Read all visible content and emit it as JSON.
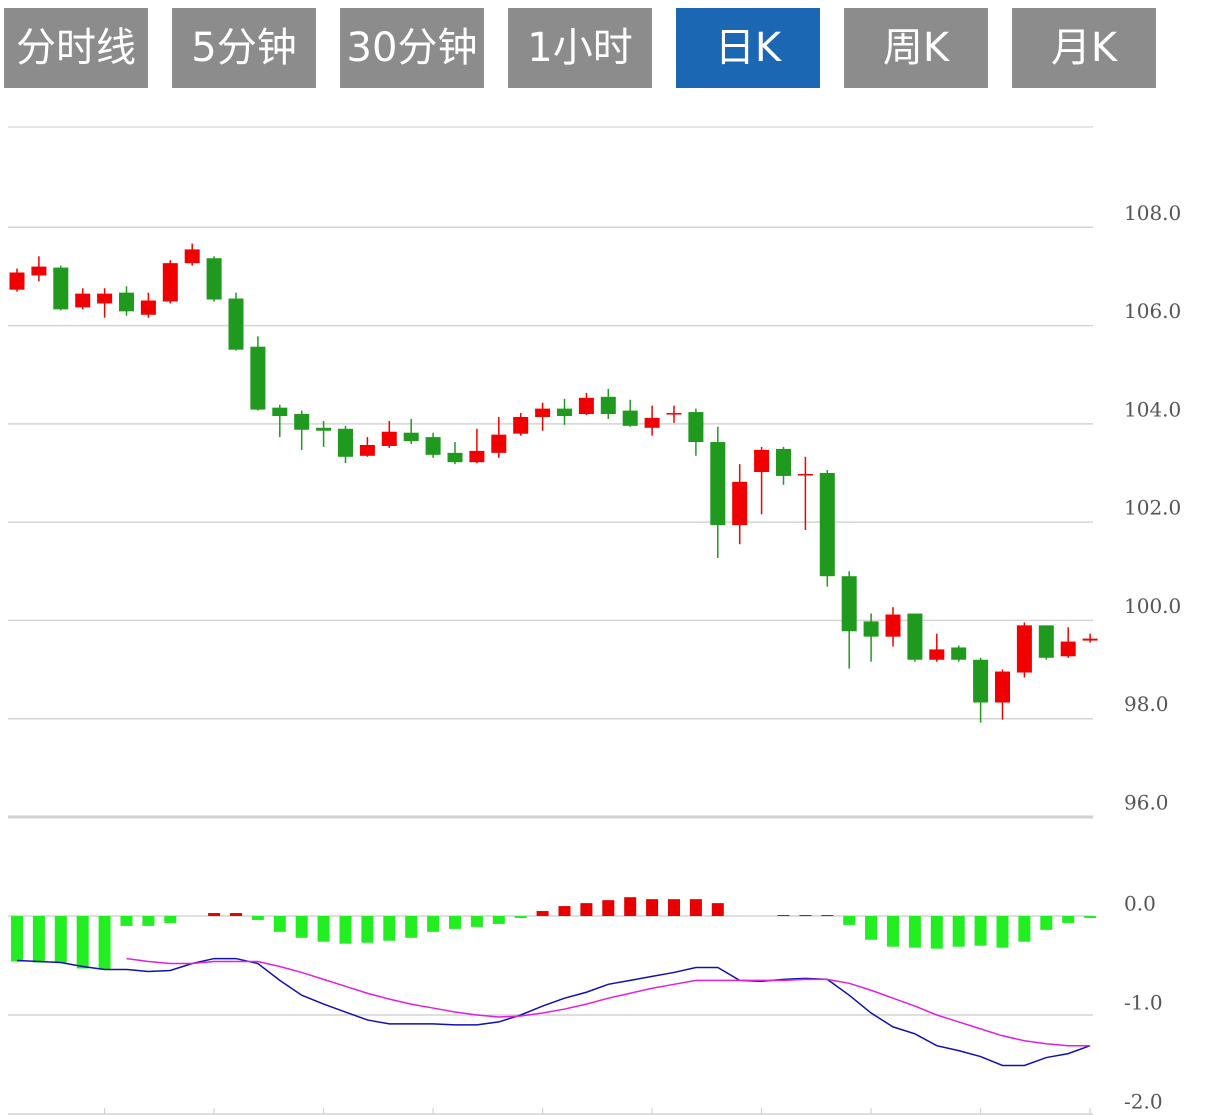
{
  "tabs": [
    "分时线",
    "5分钟",
    "30分钟",
    "1小时",
    "日K",
    "周K",
    "月K"
  ],
  "active_tab": 4,
  "chart_data": [
    {
      "type": "candlestick",
      "up_color": "#f00000",
      "down_color": "#1f9a1f",
      "ylim": [
        96,
        110
      ],
      "yticks": [
        {
          "value": 96,
          "label": "96.0"
        },
        {
          "value": 98,
          "label": "98.0"
        },
        {
          "value": 100,
          "label": "100.0"
        },
        {
          "value": 102,
          "label": "102.0"
        },
        {
          "value": 104,
          "label": "104.0"
        },
        {
          "value": 106,
          "label": "106.0"
        },
        {
          "value": 108,
          "label": "108.0"
        }
      ],
      "grid": true,
      "open": [
        106.73,
        107.02,
        107.18,
        106.37,
        106.45,
        106.67,
        106.22,
        106.49,
        107.27,
        107.37,
        106.55,
        105.57,
        104.33,
        104.2,
        103.92,
        103.9,
        103.35,
        103.55,
        103.82,
        103.73,
        103.41,
        103.22,
        103.41,
        103.8,
        104.14,
        104.31,
        104.2,
        104.55,
        104.27,
        103.92,
        104.2,
        104.24,
        103.63,
        101.94,
        103.02,
        103.49,
        102.96,
        103,
        100.9,
        99.98,
        99.67,
        100.14,
        99.2,
        99.45,
        99.2,
        98.33,
        98.94,
        99.9,
        99.27,
        99.59
      ],
      "high": [
        107.16,
        107.41,
        107.22,
        106.76,
        106.76,
        106.8,
        106.67,
        107.33,
        107.67,
        107.41,
        106.67,
        105.78,
        104.39,
        104.27,
        104.06,
        103.96,
        103.73,
        104.06,
        104.1,
        103.82,
        103.63,
        103.9,
        104.14,
        104.22,
        104.43,
        104.51,
        104.63,
        104.71,
        104.49,
        104.37,
        104.37,
        104.31,
        103.94,
        103.18,
        103.53,
        103.53,
        103.33,
        103.06,
        101,
        100.14,
        100.27,
        100.14,
        99.73,
        99.49,
        99.24,
        99,
        99.96,
        99.9,
        99.86,
        99.73
      ],
      "low": [
        106.69,
        106.9,
        106.31,
        106.33,
        106.16,
        106.2,
        106.16,
        106.45,
        107.22,
        106.49,
        105.49,
        104.27,
        103.73,
        103.47,
        103.53,
        103.2,
        103.33,
        103.51,
        103.59,
        103.31,
        103.18,
        103.2,
        103.31,
        103.76,
        103.86,
        103.98,
        104.18,
        104.1,
        103.94,
        103.76,
        104.02,
        103.35,
        101.27,
        101.55,
        102.16,
        102.76,
        101.84,
        100.69,
        99.02,
        99.16,
        99.47,
        99.16,
        99.16,
        99.16,
        97.92,
        97.98,
        98.84,
        99.2,
        99.24,
        99.55
      ],
      "close": [
        107.08,
        107.2,
        106.33,
        106.65,
        106.65,
        106.29,
        106.51,
        107.27,
        107.55,
        106.53,
        105.51,
        104.29,
        104.16,
        103.88,
        103.86,
        103.33,
        103.57,
        103.84,
        103.65,
        103.37,
        103.22,
        103.45,
        103.78,
        104.14,
        104.31,
        104.16,
        104.53,
        104.2,
        103.96,
        104.12,
        104.22,
        103.63,
        101.94,
        102.82,
        103.47,
        102.94,
        102.98,
        100.9,
        99.78,
        99.67,
        100.12,
        99.2,
        99.41,
        99.2,
        98.33,
        98.96,
        99.9,
        99.24,
        99.57,
        99.63
      ]
    },
    {
      "type": "macd",
      "ylim": [
        -2,
        1
      ],
      "yticks": [
        {
          "value": -2,
          "label": "-2.0"
        },
        {
          "value": -1,
          "label": "-1.0"
        },
        {
          "value": 0,
          "label": "0.0"
        }
      ],
      "grid": true,
      "histogram": {
        "up_color": "#e60000",
        "down_color": "#22ee22",
        "values": [
          -0.46,
          -0.47,
          -0.47,
          -0.53,
          -0.54,
          -0.1,
          -0.1,
          -0.07,
          0,
          0.03,
          0.03,
          -0.04,
          -0.16,
          -0.22,
          -0.26,
          -0.28,
          -0.27,
          -0.25,
          -0.22,
          -0.16,
          -0.13,
          -0.11,
          -0.08,
          -0.02,
          0.05,
          0.1,
          0.13,
          0.16,
          0.19,
          0.17,
          0.17,
          0.17,
          0.13,
          0,
          0,
          0.01,
          0.01,
          0.01,
          -0.09,
          -0.24,
          -0.31,
          -0.32,
          -0.33,
          -0.31,
          -0.3,
          -0.32,
          -0.26,
          -0.14,
          -0.07,
          -0.02
        ]
      },
      "lines": [
        {
          "color": "#1010b0",
          "values": [
            -0.45,
            -0.46,
            -0.47,
            -0.51,
            -0.54,
            -0.54,
            -0.56,
            -0.55,
            -0.48,
            -0.43,
            -0.43,
            -0.48,
            -0.65,
            -0.8,
            -0.89,
            -0.97,
            -1.05,
            -1.09,
            -1.09,
            -1.09,
            -1.1,
            -1.1,
            -1.07,
            -1.0,
            -0.91,
            -0.83,
            -0.77,
            -0.69,
            -0.65,
            -0.61,
            -0.57,
            -0.52,
            -0.52,
            -0.65,
            -0.66,
            -0.64,
            -0.63,
            -0.64,
            -0.8,
            -0.98,
            -1.12,
            -1.19,
            -1.31,
            -1.36,
            -1.42,
            -1.51,
            -1.51,
            -1.43,
            -1.39,
            -1.31
          ]
        },
        {
          "color": "#e020e0",
          "values": [
            null,
            null,
            null,
            null,
            null,
            -0.43,
            -0.46,
            -0.48,
            -0.48,
            -0.46,
            -0.46,
            -0.46,
            -0.51,
            -0.57,
            -0.64,
            -0.71,
            -0.78,
            -0.84,
            -0.89,
            -0.93,
            -0.97,
            -1.0,
            -1.02,
            -1.01,
            -0.98,
            -0.94,
            -0.89,
            -0.83,
            -0.78,
            -0.73,
            -0.69,
            -0.65,
            -0.65,
            -0.65,
            -0.65,
            -0.65,
            -0.64,
            -0.64,
            -0.68,
            -0.75,
            -0.83,
            -0.91,
            -1.0,
            -1.07,
            -1.14,
            -1.21,
            -1.26,
            -1.29,
            -1.31,
            -1.31
          ]
        }
      ]
    }
  ]
}
